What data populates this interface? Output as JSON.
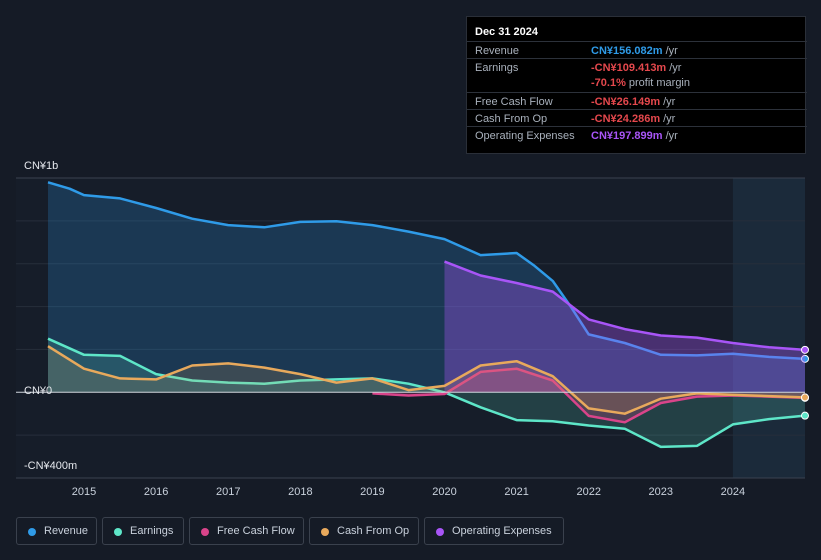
{
  "tooltip": {
    "date": "Dec 31 2024",
    "rows": [
      {
        "label": "Revenue",
        "value": "CN¥156.082m",
        "unit": "/yr",
        "color": "#2f9be8"
      },
      {
        "label": "Earnings",
        "value": "-CN¥109.413m",
        "unit": "/yr",
        "color": "#e5484d"
      },
      {
        "label": "Free Cash Flow",
        "value": "-CN¥26.149m",
        "unit": "/yr",
        "color": "#e5484d"
      },
      {
        "label": "Cash From Op",
        "value": "-CN¥24.286m",
        "unit": "/yr",
        "color": "#e5484d"
      },
      {
        "label": "Operating Expenses",
        "value": "CN¥197.899m",
        "unit": "/yr",
        "color": "#a855f7"
      }
    ],
    "profit_margin": {
      "value": "-70.1%",
      "text": "profit margin"
    }
  },
  "legend": [
    {
      "label": "Revenue",
      "color": "#2f9be8"
    },
    {
      "label": "Earnings",
      "color": "#5ee6c8"
    },
    {
      "label": "Free Cash Flow",
      "color": "#d9448a"
    },
    {
      "label": "Cash From Op",
      "color": "#e8a95c"
    },
    {
      "label": "Operating Expenses",
      "color": "#a855f7"
    }
  ],
  "chart_data": {
    "type": "area",
    "title": "",
    "xlabel": "",
    "ylabel": "",
    "x_ticks": [
      "2015",
      "2016",
      "2017",
      "2018",
      "2019",
      "2020",
      "2021",
      "2022",
      "2023",
      "2024"
    ],
    "y_ticks": [
      "CN¥1b",
      "CN¥0",
      "-CN¥400m"
    ],
    "ylim": [
      -400,
      1000
    ],
    "xlim": [
      2014.5,
      2025.0
    ],
    "highlight_from": 2024.0,
    "units": "CN¥m",
    "series": [
      {
        "name": "Revenue",
        "color": "#2f9be8",
        "fill": true,
        "x": [
          2014.5,
          2014.8,
          2015.0,
          2015.5,
          2016.0,
          2016.5,
          2017.0,
          2017.5,
          2018.0,
          2018.5,
          2019.0,
          2019.5,
          2020.0,
          2020.5,
          2021.0,
          2021.25,
          2021.5,
          2021.75,
          2022.0,
          2022.5,
          2023.0,
          2023.5,
          2024.0,
          2024.5,
          2025.0
        ],
        "values": [
          980,
          950,
          920,
          905,
          860,
          810,
          780,
          770,
          795,
          798,
          780,
          750,
          715,
          640,
          650,
          590,
          520,
          400,
          270,
          230,
          175,
          172,
          180,
          165,
          156
        ]
      },
      {
        "name": "Earnings",
        "color": "#5ee6c8",
        "fill": true,
        "x": [
          2014.5,
          2015.0,
          2015.5,
          2016.0,
          2016.5,
          2017.0,
          2017.5,
          2018.0,
          2018.5,
          2019.0,
          2019.5,
          2020.0,
          2020.5,
          2021.0,
          2021.5,
          2022.0,
          2022.5,
          2023.0,
          2023.5,
          2024.0,
          2024.5,
          2025.0
        ],
        "values": [
          250,
          175,
          170,
          85,
          55,
          45,
          40,
          55,
          60,
          65,
          40,
          0,
          -70,
          -130,
          -135,
          -155,
          -170,
          -255,
          -250,
          -150,
          -125,
          -109
        ]
      },
      {
        "name": "Free Cash Flow",
        "color": "#d9448a",
        "fill": true,
        "x": [
          2019.0,
          2019.5,
          2020.0,
          2020.5,
          2021.0,
          2021.5,
          2022.0,
          2022.5,
          2023.0,
          2023.5,
          2024.0,
          2024.5,
          2025.0
        ],
        "values": [
          -5,
          -15,
          -8,
          95,
          110,
          55,
          -110,
          -140,
          -50,
          -20,
          -15,
          -20,
          -26
        ]
      },
      {
        "name": "Cash From Op",
        "color": "#e8a95c",
        "fill": true,
        "x": [
          2014.5,
          2015.0,
          2015.5,
          2016.0,
          2016.5,
          2017.0,
          2017.5,
          2018.0,
          2018.5,
          2019.0,
          2019.5,
          2020.0,
          2020.5,
          2021.0,
          2021.5,
          2022.0,
          2022.5,
          2023.0,
          2023.5,
          2024.0,
          2024.5,
          2025.0
        ],
        "values": [
          215,
          110,
          65,
          60,
          125,
          135,
          115,
          85,
          45,
          65,
          10,
          30,
          125,
          145,
          75,
          -75,
          -100,
          -30,
          -5,
          -12,
          -18,
          -24
        ]
      },
      {
        "name": "Operating Expenses",
        "color": "#a855f7",
        "fill": true,
        "x": [
          2020.0,
          2020.5,
          2021.0,
          2021.5,
          2022.0,
          2022.5,
          2023.0,
          2023.5,
          2024.0,
          2024.5,
          2025.0
        ],
        "values": [
          610,
          545,
          510,
          470,
          340,
          295,
          265,
          255,
          230,
          210,
          198
        ]
      }
    ]
  }
}
